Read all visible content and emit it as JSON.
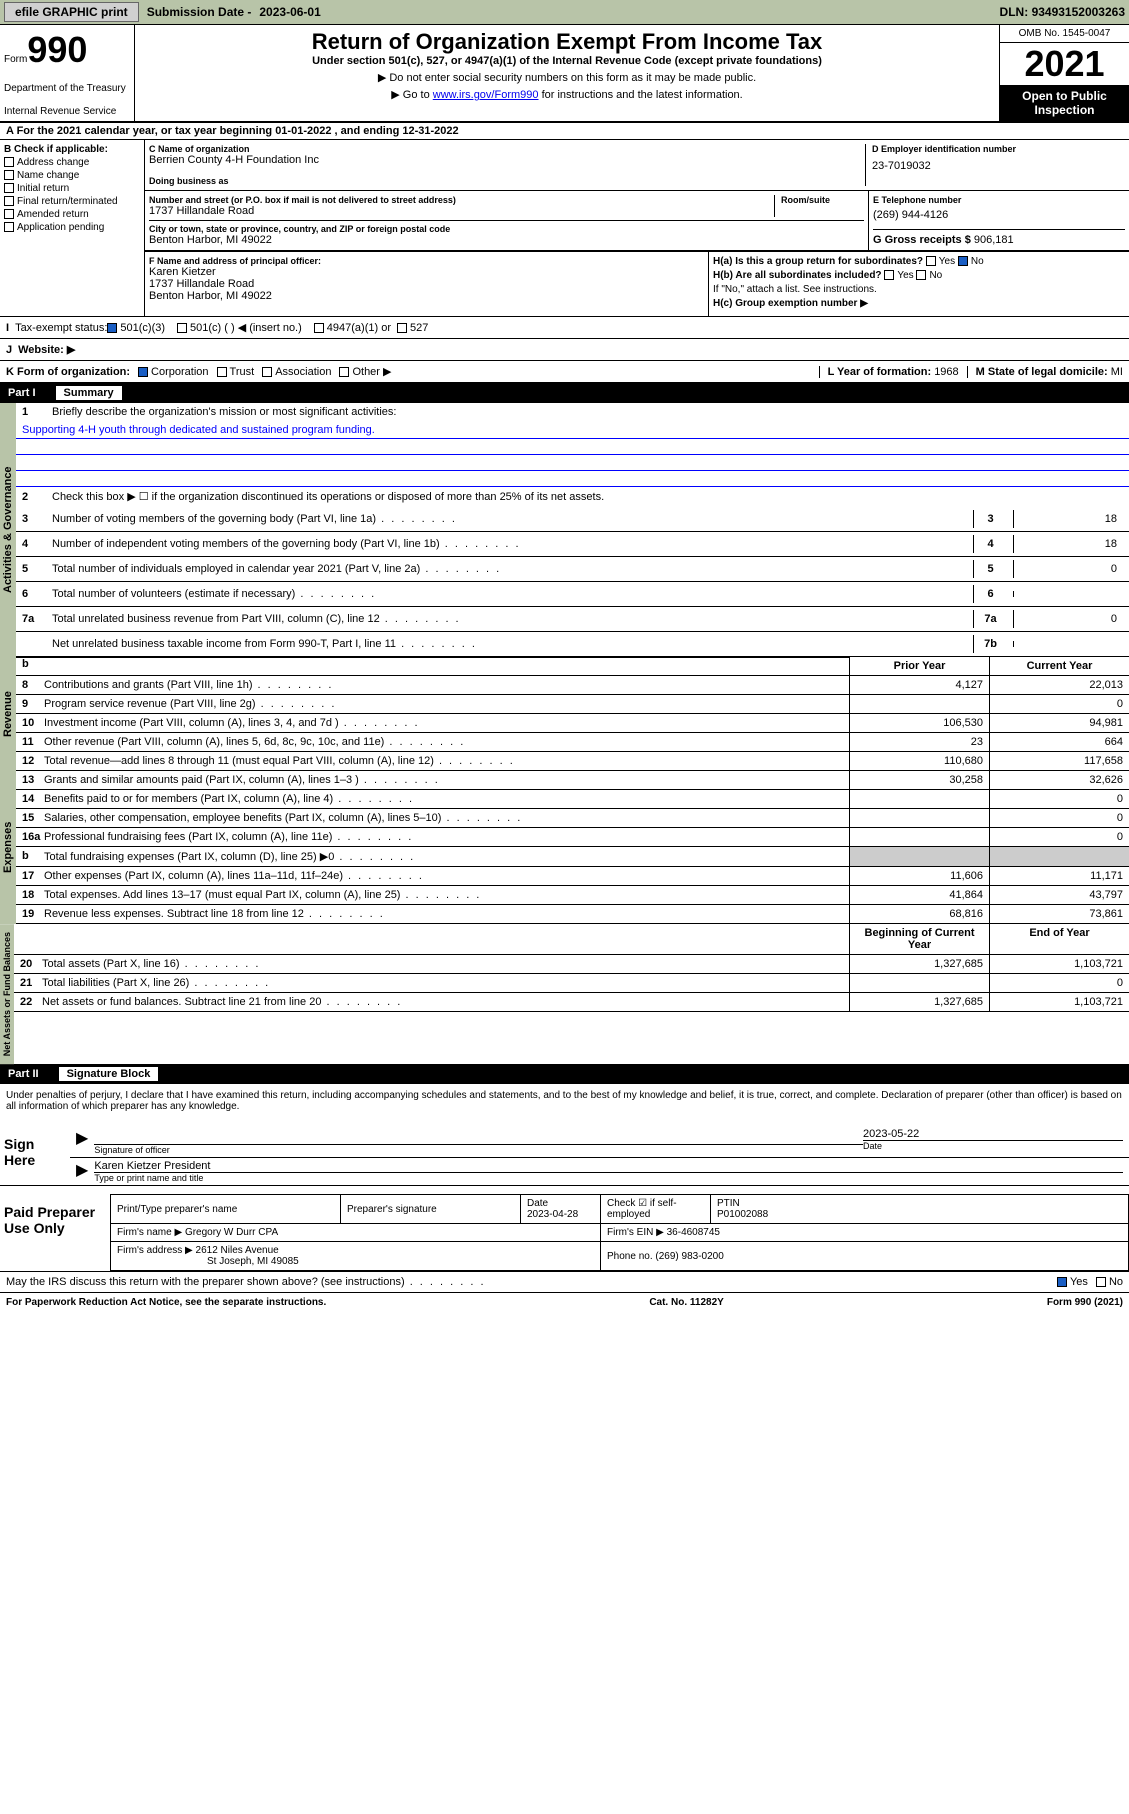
{
  "topbar": {
    "efile_btn": "efile GRAPHIC print",
    "sub_label": "Submission Date -",
    "sub_date": "2023-06-01",
    "dln_label": "DLN:",
    "dln": "93493152003263"
  },
  "header": {
    "form_word": "Form",
    "form_num": "990",
    "dept": "Department of the Treasury",
    "irs": "Internal Revenue Service",
    "title": "Return of Organization Exempt From Income Tax",
    "subtitle": "Under section 501(c), 527, or 4947(a)(1) of the Internal Revenue Code (except private foundations)",
    "instr1": "▶ Do not enter social security numbers on this form as it may be made public.",
    "instr2_pre": "▶ Go to ",
    "instr2_link": "www.irs.gov/Form990",
    "instr2_post": " for instructions and the latest information.",
    "omb": "OMB No. 1545-0047",
    "year": "2021",
    "inspection": "Open to Public Inspection"
  },
  "secA": {
    "text": "A For the 2021 calendar year, or tax year beginning 01-01-2022   , and ending 12-31-2022"
  },
  "colB": {
    "title": "B Check if applicable:",
    "items": [
      "Address change",
      "Name change",
      "Initial return",
      "Final return/terminated",
      "Amended return",
      "Application pending"
    ]
  },
  "org": {
    "c_label": "C Name of organization",
    "name": "Berrien County 4-H Foundation Inc",
    "dba_label": "Doing business as",
    "addr_label": "Number and street (or P.O. box if mail is not delivered to street address)",
    "room_label": "Room/suite",
    "street": "1737 Hillandale Road",
    "city_label": "City or town, state or province, country, and ZIP or foreign postal code",
    "city": "Benton Harbor, MI  49022",
    "d_label": "D Employer identification number",
    "ein": "23-7019032",
    "e_label": "E Telephone number",
    "phone": "(269) 944-4126",
    "g_label": "G Gross receipts $",
    "gross": "906,181"
  },
  "officer": {
    "f_label": "F  Name and address of principal officer:",
    "name": "Karen Kietzer",
    "street": "1737 Hillandale Road",
    "city": "Benton Harbor, MI  49022",
    "ha": "H(a)  Is this a group return for subordinates?",
    "hb": "H(b)  Are all subordinates included?",
    "hb_note": "If \"No,\" attach a list. See instructions.",
    "hc": "H(c)  Group exemption number ▶",
    "yes": "Yes",
    "no": "No"
  },
  "status": {
    "i_label": "Tax-exempt status:",
    "opt1": "501(c)(3)",
    "opt2": "501(c) (  ) ◀ (insert no.)",
    "opt3": "4947(a)(1) or",
    "opt4": "527",
    "j_label": "Website: ▶"
  },
  "formOrg": {
    "k_label": "K Form of organization:",
    "opts": [
      "Corporation",
      "Trust",
      "Association",
      "Other ▶"
    ],
    "l_label": "L Year of formation:",
    "l_val": "1968",
    "m_label": "M State of legal domicile:",
    "m_val": "MI"
  },
  "part1": {
    "num": "Part I",
    "title": "Summary",
    "governance_label": "Activities & Governance",
    "revenue_label": "Revenue",
    "expenses_label": "Expenses",
    "netassets_label": "Net Assets or Fund Balances",
    "q1": "Briefly describe the organization's mission or most significant activities:",
    "mission": "Supporting 4-H youth through dedicated and sustained program funding.",
    "q2": "Check this box ▶ ☐  if the organization discontinued its operations or disposed of more than 25% of its net assets.",
    "lines": [
      {
        "n": "3",
        "t": "Number of voting members of the governing body (Part VI, line 1a)",
        "box": "3",
        "v": "18"
      },
      {
        "n": "4",
        "t": "Number of independent voting members of the governing body (Part VI, line 1b)",
        "box": "4",
        "v": "18"
      },
      {
        "n": "5",
        "t": "Total number of individuals employed in calendar year 2021 (Part V, line 2a)",
        "box": "5",
        "v": "0"
      },
      {
        "n": "6",
        "t": "Total number of volunteers (estimate if necessary)",
        "box": "6",
        "v": ""
      },
      {
        "n": "7a",
        "t": "Total unrelated business revenue from Part VIII, column (C), line 12",
        "box": "7a",
        "v": "0"
      },
      {
        "n": "",
        "t": "Net unrelated business taxable income from Form 990-T, Part I, line 11",
        "box": "7b",
        "v": ""
      }
    ],
    "col_prior": "Prior Year",
    "col_current": "Current Year",
    "col_beg": "Beginning of Current Year",
    "col_end": "End of Year",
    "revenue": [
      {
        "n": "8",
        "t": "Contributions and grants (Part VIII, line 1h)",
        "p": "4,127",
        "c": "22,013"
      },
      {
        "n": "9",
        "t": "Program service revenue (Part VIII, line 2g)",
        "p": "",
        "c": "0"
      },
      {
        "n": "10",
        "t": "Investment income (Part VIII, column (A), lines 3, 4, and 7d )",
        "p": "106,530",
        "c": "94,981"
      },
      {
        "n": "11",
        "t": "Other revenue (Part VIII, column (A), lines 5, 6d, 8c, 9c, 10c, and 11e)",
        "p": "23",
        "c": "664"
      },
      {
        "n": "12",
        "t": "Total revenue—add lines 8 through 11 (must equal Part VIII, column (A), line 12)",
        "p": "110,680",
        "c": "117,658"
      }
    ],
    "expenses": [
      {
        "n": "13",
        "t": "Grants and similar amounts paid (Part IX, column (A), lines 1–3 )",
        "p": "30,258",
        "c": "32,626"
      },
      {
        "n": "14",
        "t": "Benefits paid to or for members (Part IX, column (A), line 4)",
        "p": "",
        "c": "0"
      },
      {
        "n": "15",
        "t": "Salaries, other compensation, employee benefits (Part IX, column (A), lines 5–10)",
        "p": "",
        "c": "0"
      },
      {
        "n": "16a",
        "t": "Professional fundraising fees (Part IX, column (A), line 11e)",
        "p": "",
        "c": "0"
      },
      {
        "n": "b",
        "t": "Total fundraising expenses (Part IX, column (D), line 25) ▶0",
        "p": "shaded",
        "c": "shaded"
      },
      {
        "n": "17",
        "t": "Other expenses (Part IX, column (A), lines 11a–11d, 11f–24e)",
        "p": "11,606",
        "c": "11,171"
      },
      {
        "n": "18",
        "t": "Total expenses. Add lines 13–17 (must equal Part IX, column (A), line 25)",
        "p": "41,864",
        "c": "43,797"
      },
      {
        "n": "19",
        "t": "Revenue less expenses. Subtract line 18 from line 12",
        "p": "68,816",
        "c": "73,861"
      }
    ],
    "netassets": [
      {
        "n": "20",
        "t": "Total assets (Part X, line 16)",
        "p": "1,327,685",
        "c": "1,103,721"
      },
      {
        "n": "21",
        "t": "Total liabilities (Part X, line 26)",
        "p": "",
        "c": "0"
      },
      {
        "n": "22",
        "t": "Net assets or fund balances. Subtract line 21 from line 20",
        "p": "1,327,685",
        "c": "1,103,721"
      }
    ]
  },
  "part2": {
    "num": "Part II",
    "title": "Signature Block",
    "declaration": "Under penalties of perjury, I declare that I have examined this return, including accompanying schedules and statements, and to the best of my knowledge and belief, it is true, correct, and complete. Declaration of preparer (other than officer) is based on all information of which preparer has any knowledge.",
    "sign_here": "Sign Here",
    "sig_officer": "Signature of officer",
    "sig_date": "2023-05-22",
    "date_label": "Date",
    "officer_name": "Karen Kietzer  President",
    "type_name": "Type or print name and title",
    "paid": "Paid Preparer Use Only",
    "prep_name_label": "Print/Type preparer's name",
    "prep_sig_label": "Preparer's signature",
    "prep_date_label": "Date",
    "prep_date": "2023-04-28",
    "check_label": "Check ☑ if self-employed",
    "ptin_label": "PTIN",
    "ptin": "P01002088",
    "firm_name_label": "Firm's name    ▶",
    "firm_name": "Gregory W Durr CPA",
    "firm_ein_label": "Firm's EIN ▶",
    "firm_ein": "36-4608745",
    "firm_addr_label": "Firm's address ▶",
    "firm_addr1": "2612 Niles Avenue",
    "firm_addr2": "St Joseph, MI  49085",
    "phone_label": "Phone no.",
    "phone": "(269) 983-0200",
    "discuss": "May the IRS discuss this return with the preparer shown above? (see instructions)",
    "footer_left": "For Paperwork Reduction Act Notice, see the separate instructions.",
    "footer_center": "Cat. No. 11282Y",
    "footer_right": "Form 990 (2021)"
  }
}
